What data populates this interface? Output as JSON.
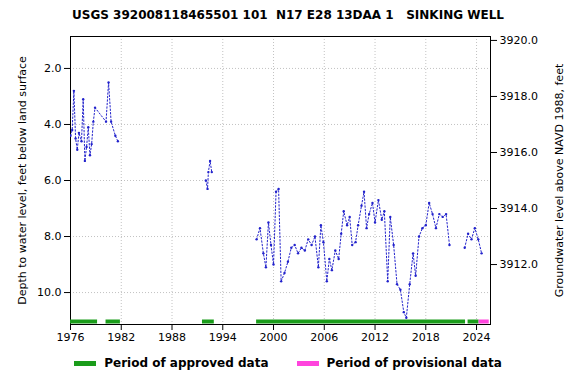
{
  "chart_data": {
    "type": "line",
    "title": "USGS 392008118465501 101  N17 E28 13DAA 1   SINKING WELL",
    "y_label": "Depth to water level, feet below land surface",
    "y2_label": "Groundwater level above NAVD 1988, feet",
    "xlim": [
      1976,
      2025.65
    ],
    "xticks": [
      1976,
      1982,
      1988,
      1994,
      2000,
      2006,
      2012,
      2018,
      2024
    ],
    "ylim": [
      11.14,
      0.86
    ],
    "yticks": [
      {
        "value": 2,
        "label": "2.0"
      },
      {
        "value": 4,
        "label": "4.0"
      },
      {
        "value": 6,
        "label": "6.0"
      },
      {
        "value": 8,
        "label": "8.0"
      },
      {
        "value": 10,
        "label": "10.0"
      }
    ],
    "y2lim": [
      3909.86,
      3920.14
    ],
    "y2ticks": [
      {
        "value": 3912,
        "label": "3912.0"
      },
      {
        "value": 3914,
        "label": "3914.0"
      },
      {
        "value": 3916,
        "label": "3916.0"
      },
      {
        "value": 3918,
        "label": "3918.0"
      },
      {
        "value": 3920,
        "label": "3920.0"
      }
    ],
    "grid": true,
    "color": "#2222cc",
    "marker": "dot",
    "line_style": "dotted",
    "x": [
      1976.0,
      1976.2,
      1976.4,
      1976.6,
      1976.8,
      1977.0,
      1977.3,
      1977.5,
      1977.7,
      1977.9,
      1978.1,
      1978.3,
      1978.5,
      1978.7,
      1978.9,
      1980.2,
      1980.5,
      1980.8,
      1981.3,
      1981.6,
      1986.0,
      1992.0,
      1992.2,
      1992.3,
      1992.5,
      1992.7,
      1995.0,
      1998.0,
      1998.4,
      1998.8,
      1999.1,
      1999.4,
      1999.7,
      2000.0,
      2000.3,
      2000.6,
      2000.9,
      2001.3,
      2001.7,
      2002.1,
      2002.5,
      2002.9,
      2003.3,
      2003.7,
      2004.1,
      2004.5,
      2004.9,
      2005.3,
      2005.6,
      2005.9,
      2006.3,
      2006.6,
      2006.9,
      2007.3,
      2007.7,
      2008.0,
      2008.3,
      2008.7,
      2009.0,
      2009.3,
      2009.7,
      2010.0,
      2010.4,
      2010.7,
      2011.0,
      2011.3,
      2011.7,
      2012.0,
      2012.4,
      2012.8,
      2013.1,
      2013.5,
      2013.8,
      2014.2,
      2014.6,
      2015.0,
      2015.4,
      2015.7,
      2016.1,
      2016.5,
      2016.8,
      2017.2,
      2017.6,
      2018.0,
      2018.4,
      2018.8,
      2019.2,
      2019.6,
      2020.0,
      2020.4,
      2020.8,
      2021.7,
      2022.6,
      2023.0,
      2023.4,
      2023.8,
      2024.2,
      2024.6
    ],
    "values": [
      4.4,
      4.2,
      2.8,
      4.5,
      4.9,
      4.3,
      4.6,
      3.1,
      5.3,
      4.8,
      4.1,
      5.1,
      4.7,
      3.9,
      3.4,
      3.9,
      2.5,
      3.9,
      4.4,
      4.6,
      null,
      6.0,
      6.3,
      5.7,
      5.3,
      5.7,
      null,
      8.1,
      7.7,
      8.6,
      9.1,
      7.5,
      8.3,
      9.0,
      6.4,
      6.3,
      9.6,
      9.3,
      8.9,
      8.4,
      8.3,
      8.6,
      8.4,
      8.5,
      8.1,
      8.3,
      8.0,
      9.1,
      7.6,
      8.2,
      9.6,
      8.8,
      9.2,
      8.5,
      8.8,
      7.9,
      7.1,
      7.6,
      7.3,
      8.3,
      8.2,
      7.6,
      6.9,
      6.4,
      7.7,
      7.2,
      6.8,
      7.5,
      6.7,
      7.4,
      7.1,
      9.6,
      7.3,
      8.3,
      9.7,
      9.9,
      10.7,
      10.9,
      9.7,
      8.6,
      9.4,
      8.0,
      7.7,
      7.6,
      6.8,
      7.2,
      7.7,
      7.2,
      7.3,
      7.2,
      8.3,
      null,
      8.4,
      7.9,
      8.1,
      7.7,
      8.1,
      8.6
    ],
    "periods": [
      {
        "name": "Period of approved data",
        "color": "#1a9c1a",
        "ranges": [
          [
            1976.0,
            1979.2
          ],
          [
            1980.2,
            1981.9
          ],
          [
            1991.6,
            1993.0
          ],
          [
            1998.0,
            2022.7
          ],
          [
            2023.0,
            2024.3
          ]
        ]
      },
      {
        "name": "Period of provisional data",
        "color": "#ff44dd",
        "ranges": [
          [
            2024.3,
            2025.5
          ]
        ]
      }
    ]
  }
}
